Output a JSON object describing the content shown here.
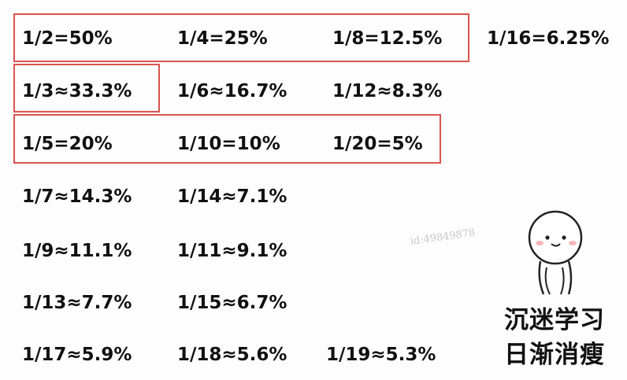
{
  "fractions": {
    "r1": [
      "1/2=50%",
      "1/4=25%",
      "1/8=12.5%",
      "1/16=6.25%"
    ],
    "r2": [
      "1/3≈33.3%",
      "1/6≈16.7%",
      "1/12≈8.3%"
    ],
    "r3": [
      "1/5=20%",
      "1/10=10%",
      "1/20=5%"
    ],
    "r4": [
      "1/7≈14.3%",
      "1/14≈7.1%"
    ],
    "r5": [
      "1/9≈11.1%",
      "1/11≈9.1%"
    ],
    "r6": [
      "1/13≈7.7%",
      "1/15≈6.7%"
    ],
    "r7": [
      "1/17≈5.9%",
      "1/18≈5.6%",
      "1/19≈5.3%"
    ]
  },
  "watermark": "id:49849878",
  "slogan": {
    "line1": "沉迷学习",
    "line2": "日渐消瘦"
  },
  "colors": {
    "highlight_box": "#d9544f",
    "text": "#111111"
  },
  "mascot": "smiling-round-head-sticker"
}
